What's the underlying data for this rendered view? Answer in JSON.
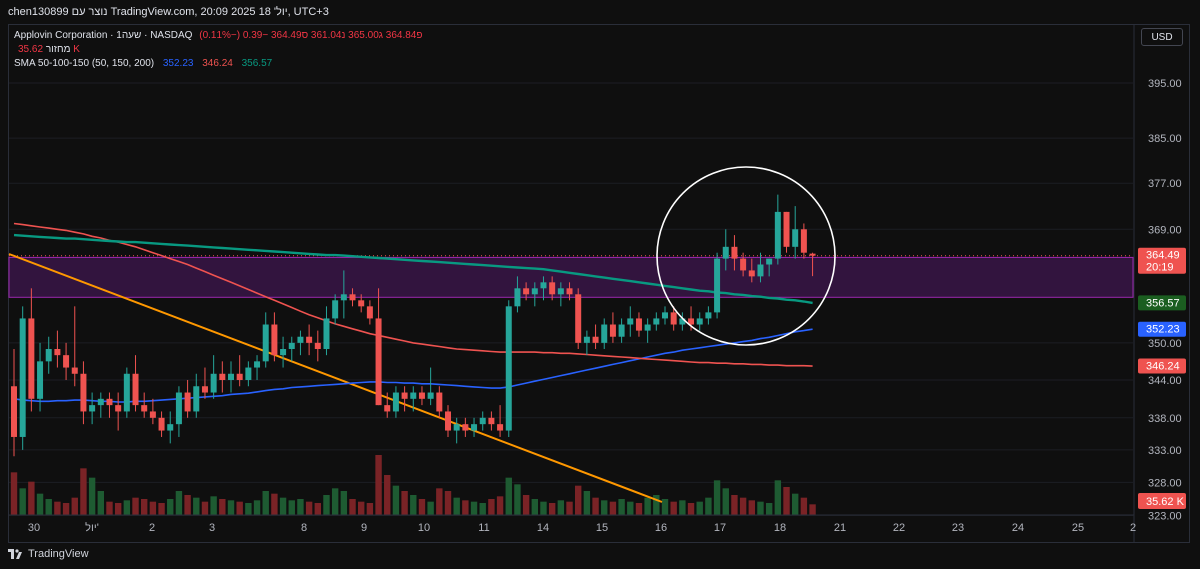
{
  "header": {
    "text": "chen130899 נוצר עם TradingView.com, 20:09 2025 יול' 18, UTC+3"
  },
  "legend": {
    "symbol_line": "Applovin Corporation · 1שעה · NASDAQ",
    "ohlc": "פ364.84 ג365.00 נ361.04 ס364.49 −0.39 (−0.11%)",
    "volume_label": "מחזור",
    "volume_value": "35.62 K",
    "sma_label": "SMA 50-100-150 (50, 150, 200)",
    "sma_values": [
      "352.23",
      "346.24",
      "356.57"
    ]
  },
  "currency_button": "USD",
  "footer": {
    "brand": "TradingView"
  },
  "colors": {
    "up": "#26a69a",
    "down": "#ef5350",
    "bg": "#0f0f0f",
    "sma_blue": "#2962ff",
    "sma_red": "#ef5350",
    "sma_green": "#089981",
    "trendline": "#ff9800",
    "zone": "#7b1fa2"
  },
  "chart_data": {
    "type": "candlestick",
    "symbol": "Applovin Corporation",
    "interval": "1שעה",
    "exchange": "NASDAQ",
    "currency": "USD",
    "y_scale": "log",
    "ylim": [
      325,
      400
    ],
    "y_ticks": [
      "395.00",
      "385.00",
      "377.00",
      "369.00",
      "350.00",
      "344.00",
      "338.00",
      "333.00",
      "328.00",
      "323.00"
    ],
    "x_ticks": [
      "30",
      "יול'",
      "2",
      "3",
      "8",
      "9",
      "10",
      "11",
      "14",
      "15",
      "16",
      "17",
      "18",
      "21",
      "22",
      "23",
      "24",
      "25",
      "2"
    ],
    "price_labels": [
      {
        "value": 364.49,
        "text": "364.49",
        "sub": "20:19"
      },
      {
        "value": 356.57,
        "text": "356.57"
      },
      {
        "value": 352.23,
        "text": "352.23"
      },
      {
        "value": 346.24,
        "text": "346.24"
      }
    ],
    "volume_label": "35.62 K",
    "candles": [
      {
        "o": 343,
        "h": 349,
        "l": 332,
        "c": 335
      },
      {
        "o": 335,
        "h": 356,
        "l": 333,
        "c": 354
      },
      {
        "o": 354,
        "h": 359,
        "l": 339,
        "c": 341
      },
      {
        "o": 341,
        "h": 350,
        "l": 339,
        "c": 347
      },
      {
        "o": 347,
        "h": 351,
        "l": 345,
        "c": 349
      },
      {
        "o": 349,
        "h": 352,
        "l": 346,
        "c": 348
      },
      {
        "o": 348,
        "h": 350,
        "l": 344,
        "c": 346
      },
      {
        "o": 346,
        "h": 356,
        "l": 343,
        "c": 345
      },
      {
        "o": 345,
        "h": 347,
        "l": 337,
        "c": 339
      },
      {
        "o": 339,
        "h": 342,
        "l": 337,
        "c": 340
      },
      {
        "o": 340,
        "h": 342,
        "l": 338,
        "c": 341
      },
      {
        "o": 341,
        "h": 342,
        "l": 338,
        "c": 340
      },
      {
        "o": 340,
        "h": 342,
        "l": 336,
        "c": 339
      },
      {
        "o": 339,
        "h": 346,
        "l": 338,
        "c": 345
      },
      {
        "o": 345,
        "h": 348,
        "l": 339,
        "c": 340
      },
      {
        "o": 340,
        "h": 342,
        "l": 338,
        "c": 339
      },
      {
        "o": 339,
        "h": 341,
        "l": 337,
        "c": 338
      },
      {
        "o": 338,
        "h": 339,
        "l": 335,
        "c": 336
      },
      {
        "o": 336,
        "h": 339,
        "l": 334,
        "c": 337
      },
      {
        "o": 337,
        "h": 343,
        "l": 335,
        "c": 342
      },
      {
        "o": 342,
        "h": 344,
        "l": 338,
        "c": 339
      },
      {
        "o": 339,
        "h": 345,
        "l": 338,
        "c": 343
      },
      {
        "o": 343,
        "h": 346,
        "l": 341,
        "c": 342
      },
      {
        "o": 342,
        "h": 348,
        "l": 341,
        "c": 345
      },
      {
        "o": 345,
        "h": 347,
        "l": 342,
        "c": 344
      },
      {
        "o": 344,
        "h": 347,
        "l": 342,
        "c": 345
      },
      {
        "o": 345,
        "h": 348,
        "l": 343,
        "c": 344
      },
      {
        "o": 344,
        "h": 347,
        "l": 343,
        "c": 346
      },
      {
        "o": 346,
        "h": 348,
        "l": 344,
        "c": 347
      },
      {
        "o": 347,
        "h": 355,
        "l": 346,
        "c": 353
      },
      {
        "o": 353,
        "h": 355,
        "l": 347,
        "c": 348
      },
      {
        "o": 348,
        "h": 351,
        "l": 346,
        "c": 349
      },
      {
        "o": 349,
        "h": 351,
        "l": 347,
        "c": 350
      },
      {
        "o": 350,
        "h": 352,
        "l": 348,
        "c": 351
      },
      {
        "o": 351,
        "h": 353,
        "l": 348,
        "c": 350
      },
      {
        "o": 350,
        "h": 352,
        "l": 347,
        "c": 349
      },
      {
        "o": 349,
        "h": 356,
        "l": 348,
        "c": 354
      },
      {
        "o": 354,
        "h": 358,
        "l": 353,
        "c": 357
      },
      {
        "o": 357,
        "h": 362,
        "l": 354,
        "c": 358
      },
      {
        "o": 358,
        "h": 359,
        "l": 356,
        "c": 357
      },
      {
        "o": 357,
        "h": 358,
        "l": 355,
        "c": 356
      },
      {
        "o": 356,
        "h": 357,
        "l": 353,
        "c": 354
      },
      {
        "o": 354,
        "h": 359,
        "l": 340,
        "c": 340
      },
      {
        "o": 340,
        "h": 342,
        "l": 338,
        "c": 339
      },
      {
        "o": 339,
        "h": 343,
        "l": 338,
        "c": 342
      },
      {
        "o": 342,
        "h": 343,
        "l": 339,
        "c": 341
      },
      {
        "o": 341,
        "h": 343,
        "l": 339,
        "c": 342
      },
      {
        "o": 342,
        "h": 343,
        "l": 340,
        "c": 341
      },
      {
        "o": 341,
        "h": 346,
        "l": 340,
        "c": 342
      },
      {
        "o": 342,
        "h": 343,
        "l": 338,
        "c": 339
      },
      {
        "o": 339,
        "h": 340,
        "l": 335,
        "c": 336
      },
      {
        "o": 336,
        "h": 338,
        "l": 334,
        "c": 337
      },
      {
        "o": 337,
        "h": 338,
        "l": 335,
        "c": 336
      },
      {
        "o": 336,
        "h": 338,
        "l": 335,
        "c": 337
      },
      {
        "o": 337,
        "h": 339,
        "l": 336,
        "c": 338
      },
      {
        "o": 338,
        "h": 339,
        "l": 336,
        "c": 337
      },
      {
        "o": 337,
        "h": 340,
        "l": 335,
        "c": 336
      },
      {
        "o": 336,
        "h": 357,
        "l": 335,
        "c": 356
      },
      {
        "o": 356,
        "h": 361,
        "l": 355,
        "c": 359
      },
      {
        "o": 359,
        "h": 360,
        "l": 357,
        "c": 358
      },
      {
        "o": 358,
        "h": 360,
        "l": 356,
        "c": 359
      },
      {
        "o": 359,
        "h": 361,
        "l": 357,
        "c": 360
      },
      {
        "o": 360,
        "h": 361,
        "l": 357,
        "c": 358
      },
      {
        "o": 358,
        "h": 360,
        "l": 356,
        "c": 359
      },
      {
        "o": 359,
        "h": 360,
        "l": 357,
        "c": 358
      },
      {
        "o": 358,
        "h": 359,
        "l": 349,
        "c": 350
      },
      {
        "o": 350,
        "h": 352,
        "l": 348,
        "c": 351
      },
      {
        "o": 351,
        "h": 353,
        "l": 349,
        "c": 350
      },
      {
        "o": 350,
        "h": 354,
        "l": 349,
        "c": 353
      },
      {
        "o": 353,
        "h": 355,
        "l": 350,
        "c": 351
      },
      {
        "o": 351,
        "h": 354,
        "l": 350,
        "c": 353
      },
      {
        "o": 353,
        "h": 356,
        "l": 351,
        "c": 354
      },
      {
        "o": 354,
        "h": 355,
        "l": 351,
        "c": 352
      },
      {
        "o": 352,
        "h": 354,
        "l": 350,
        "c": 353
      },
      {
        "o": 353,
        "h": 355,
        "l": 352,
        "c": 354
      },
      {
        "o": 354,
        "h": 356,
        "l": 353,
        "c": 355
      },
      {
        "o": 355,
        "h": 356,
        "l": 352,
        "c": 353
      },
      {
        "o": 353,
        "h": 355,
        "l": 352,
        "c": 354
      },
      {
        "o": 354,
        "h": 356,
        "l": 352,
        "c": 353
      },
      {
        "o": 353,
        "h": 355,
        "l": 352,
        "c": 354
      },
      {
        "o": 354,
        "h": 356,
        "l": 353,
        "c": 355
      },
      {
        "o": 355,
        "h": 365,
        "l": 354,
        "c": 364
      },
      {
        "o": 364,
        "h": 369,
        "l": 362,
        "c": 366
      },
      {
        "o": 366,
        "h": 368,
        "l": 362,
        "c": 364
      },
      {
        "o": 364,
        "h": 365,
        "l": 361,
        "c": 362
      },
      {
        "o": 362,
        "h": 364,
        "l": 360,
        "c": 361
      },
      {
        "o": 361,
        "h": 365,
        "l": 360,
        "c": 363
      },
      {
        "o": 363,
        "h": 364,
        "l": 361,
        "c": 364
      },
      {
        "o": 364,
        "h": 375,
        "l": 363,
        "c": 372
      },
      {
        "o": 372,
        "h": 372,
        "l": 365,
        "c": 366
      },
      {
        "o": 366,
        "h": 373,
        "l": 364,
        "c": 369
      },
      {
        "o": 369,
        "h": 370,
        "l": 364,
        "c": 365
      },
      {
        "o": 364.84,
        "h": 365,
        "l": 361.04,
        "c": 364.49
      }
    ],
    "volume": [
      3.2,
      2.0,
      2.5,
      1.6,
      1.2,
      1.0,
      0.9,
      1.3,
      3.5,
      2.8,
      1.8,
      1.0,
      0.9,
      1.1,
      1.3,
      1.2,
      1.0,
      0.9,
      1.2,
      1.8,
      1.5,
      1.3,
      1.0,
      1.4,
      1.2,
      1.1,
      1.0,
      0.9,
      1.1,
      1.8,
      1.6,
      1.3,
      1.1,
      1.2,
      1.0,
      0.9,
      1.5,
      2.0,
      1.8,
      1.2,
      1.0,
      0.9,
      4.5,
      3.0,
      2.2,
      1.8,
      1.5,
      1.2,
      1.0,
      2.0,
      1.8,
      1.3,
      1.1,
      1.0,
      0.9,
      1.2,
      1.4,
      2.8,
      2.3,
      1.5,
      1.2,
      1.0,
      0.9,
      1.1,
      1.0,
      2.2,
      1.8,
      1.3,
      1.1,
      1.0,
      1.2,
      1.0,
      0.9,
      1.3,
      1.5,
      1.2,
      1.0,
      1.1,
      0.9,
      1.0,
      1.3,
      2.6,
      2.0,
      1.5,
      1.3,
      1.1,
      1.0,
      0.9,
      2.6,
      2.1,
      1.6,
      1.3,
      0.8
    ],
    "sma": [
      {
        "name": "SMA 50",
        "color": "#2962ff",
        "label_value": "352.23",
        "values": [
          341,
          340.8,
          340.7,
          340.6,
          340.6,
          340.7,
          340.7,
          340.8,
          340.8,
          340.7,
          340.6,
          340.6,
          340.5,
          340.5,
          340.6,
          340.6,
          340.7,
          340.8,
          340.9,
          341.0,
          341.1,
          341.2,
          341.3,
          341.4,
          341.5,
          341.7,
          341.8,
          341.9,
          342.1,
          342.3,
          342.5,
          342.6,
          342.8,
          342.9,
          343.0,
          343.1,
          343.2,
          343.3,
          343.4,
          343.5,
          343.6,
          343.7,
          343.7,
          343.6,
          343.6,
          343.5,
          343.5,
          343.4,
          343.4,
          343.3,
          343.2,
          343.1,
          343.0,
          342.9,
          342.8,
          342.7,
          342.7,
          342.9,
          343.2,
          343.5,
          343.8,
          344.1,
          344.4,
          344.7,
          345.0,
          345.3,
          345.6,
          345.9,
          346.2,
          346.5,
          346.8,
          347.1,
          347.4,
          347.7,
          348.0,
          348.3,
          348.5,
          348.8,
          349.0,
          349.2,
          349.4,
          349.6,
          349.8,
          350.0,
          350.2,
          350.4,
          350.7,
          350.9,
          351.2,
          351.5,
          351.8,
          352.0,
          352.23
        ]
      },
      {
        "name": "SMA 150",
        "color": "#ef5350",
        "label_value": "346.24",
        "values": [
          370,
          369.8,
          369.6,
          369.4,
          369.2,
          369.0,
          368.8,
          368.5,
          368.2,
          367.8,
          367.5,
          367.1,
          366.8,
          366.4,
          366.0,
          365.5,
          365.0,
          364.5,
          364.0,
          363.5,
          363.0,
          362.4,
          361.8,
          361.2,
          360.6,
          360.0,
          359.4,
          358.8,
          358.2,
          357.6,
          357.0,
          356.4,
          355.8,
          355.2,
          354.6,
          354.1,
          353.6,
          353.1,
          352.7,
          352.3,
          351.9,
          351.5,
          351.2,
          350.9,
          350.6,
          350.3,
          350.0,
          349.8,
          349.6,
          349.4,
          349.2,
          349.0,
          348.9,
          348.8,
          348.7,
          348.6,
          348.5,
          348.5,
          348.5,
          348.5,
          348.5,
          348.4,
          348.4,
          348.3,
          348.3,
          348.2,
          348.1,
          348.0,
          347.9,
          347.8,
          347.7,
          347.6,
          347.5,
          347.4,
          347.3,
          347.2,
          347.1,
          347.0,
          346.9,
          346.8,
          346.8,
          346.7,
          346.7,
          346.6,
          346.6,
          346.5,
          346.5,
          346.4,
          346.4,
          346.3,
          346.3,
          346.3,
          346.24
        ]
      },
      {
        "name": "SMA 200",
        "color": "#089981",
        "label_value": "356.57",
        "values": [
          368,
          367.9,
          367.8,
          367.7,
          367.6,
          367.5,
          367.4,
          367.4,
          367.3,
          367.2,
          367.1,
          367.0,
          366.9,
          366.8,
          366.8,
          366.7,
          366.6,
          366.5,
          366.4,
          366.3,
          366.2,
          366.1,
          366.0,
          365.9,
          365.8,
          365.7,
          365.6,
          365.5,
          365.4,
          365.3,
          365.2,
          365.1,
          365.0,
          364.9,
          364.8,
          364.7,
          364.6,
          364.6,
          364.5,
          364.4,
          364.3,
          364.2,
          364.1,
          364.0,
          363.9,
          363.8,
          363.7,
          363.6,
          363.5,
          363.4,
          363.3,
          363.2,
          363.1,
          363.0,
          362.9,
          362.8,
          362.7,
          362.6,
          362.5,
          362.4,
          362.3,
          362.2,
          362.0,
          361.8,
          361.6,
          361.4,
          361.2,
          361.0,
          360.8,
          360.6,
          360.4,
          360.2,
          360.0,
          359.8,
          359.6,
          359.4,
          359.2,
          359.0,
          358.8,
          358.6,
          358.5,
          358.3,
          358.2,
          358.0,
          357.9,
          357.7,
          357.6,
          357.4,
          357.3,
          357.1,
          357.0,
          356.8,
          356.57
        ]
      }
    ]
  }
}
